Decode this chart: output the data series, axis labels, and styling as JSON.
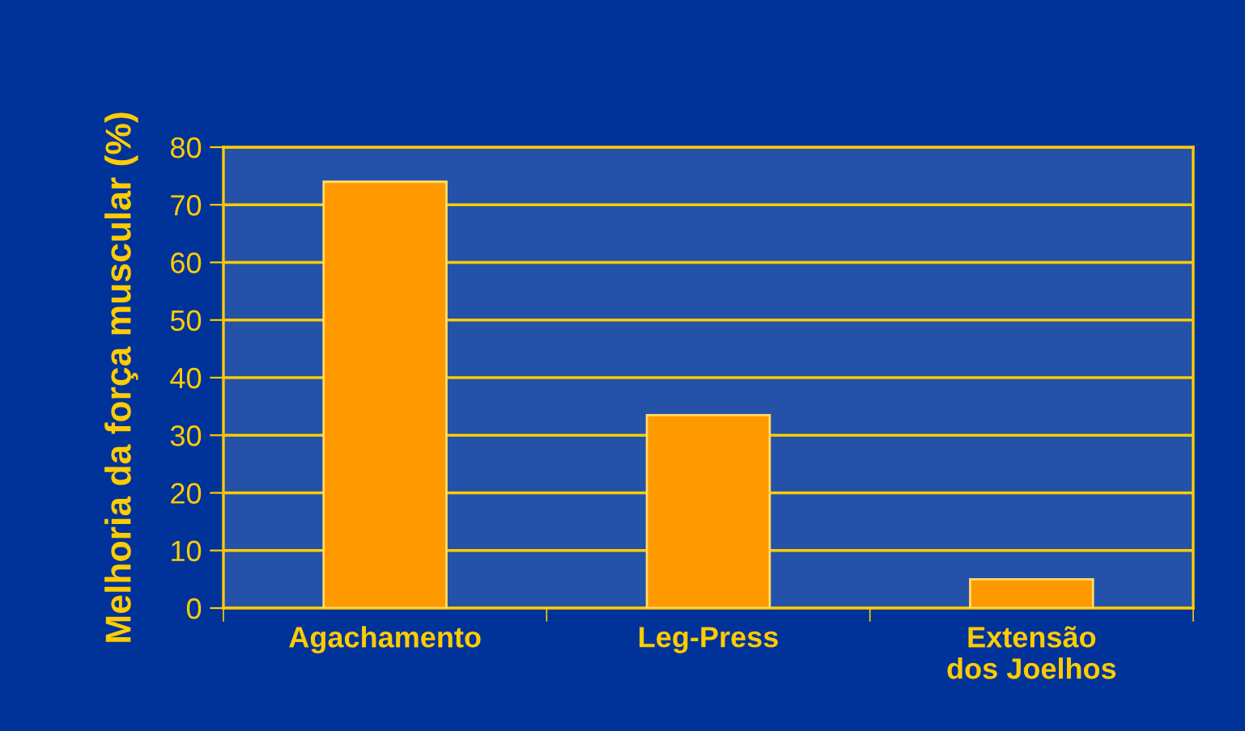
{
  "chart_data": {
    "type": "bar",
    "ylabel": "Melhoria da força muscular (%)",
    "categories": [
      "Agachamento",
      "Leg-Press",
      "Extensão\ndos Joelhos"
    ],
    "values": [
      74,
      33.5,
      5
    ],
    "color": "#ff9900",
    "ylim": [
      0,
      80
    ],
    "yticks": [
      0,
      10,
      20,
      30,
      40,
      50,
      60,
      70,
      80
    ],
    "grid": "y"
  }
}
